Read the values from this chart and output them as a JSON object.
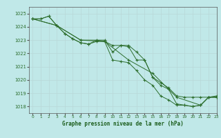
{
  "title": "Graphe pression niveau de la mer (hPa)",
  "bg_color": "#c0e8e8",
  "grid_color": "#aaaaaa",
  "line_color": "#2d6e2d",
  "xlim": [
    -0.5,
    23
  ],
  "ylim": [
    1017.5,
    1025.5
  ],
  "yticks": [
    1018,
    1019,
    1020,
    1021,
    1022,
    1023,
    1024,
    1025
  ],
  "xticks": [
    0,
    1,
    2,
    3,
    4,
    5,
    6,
    7,
    8,
    9,
    10,
    11,
    12,
    13,
    14,
    15,
    16,
    17,
    18,
    19,
    20,
    21,
    22,
    23
  ],
  "lines": [
    {
      "x": [
        0,
        1,
        2,
        3,
        4,
        5,
        6,
        7,
        8,
        9,
        10,
        11,
        12,
        13,
        14,
        15,
        16,
        17,
        18,
        19,
        20,
        21,
        22,
        23
      ],
      "y": [
        1024.6,
        1024.6,
        1024.8,
        1024.1,
        1023.5,
        1023.1,
        1022.8,
        1022.7,
        1023.0,
        1022.9,
        1022.6,
        1022.6,
        1022.6,
        1022.1,
        1021.5,
        1020.2,
        1019.8,
        1019.4,
        1018.8,
        1018.7,
        1018.7,
        1018.7,
        1018.7,
        1018.7
      ]
    },
    {
      "x": [
        0,
        1,
        2,
        3,
        4,
        5,
        6,
        7,
        8,
        9,
        10,
        11,
        12,
        13,
        14,
        15,
        16,
        17,
        18,
        19,
        20,
        21,
        22,
        23
      ],
      "y": [
        1024.6,
        1024.6,
        1024.8,
        1024.1,
        1023.5,
        1023.1,
        1022.8,
        1022.7,
        1022.9,
        1022.9,
        1021.5,
        1021.4,
        1021.3,
        1020.7,
        1020.0,
        1019.6,
        1018.8,
        1018.5,
        1018.1,
        1018.1,
        1018.0,
        1018.1,
        1018.7,
        1018.7
      ]
    },
    {
      "x": [
        0,
        3,
        6,
        9,
        10,
        11,
        12,
        13,
        14,
        15,
        16,
        17,
        18,
        19,
        20,
        21,
        22,
        23
      ],
      "y": [
        1024.6,
        1024.1,
        1023.0,
        1023.0,
        1022.1,
        1022.6,
        1022.5,
        1021.5,
        1021.5,
        1020.2,
        1019.6,
        1019.3,
        1018.2,
        1018.1,
        1018.0,
        1018.1,
        1018.7,
        1018.8
      ]
    },
    {
      "x": [
        0,
        3,
        6,
        9,
        12,
        15,
        18,
        21,
        22,
        23
      ],
      "y": [
        1024.6,
        1024.1,
        1023.0,
        1022.9,
        1021.5,
        1020.5,
        1018.7,
        1018.1,
        1018.7,
        1018.7
      ]
    }
  ]
}
